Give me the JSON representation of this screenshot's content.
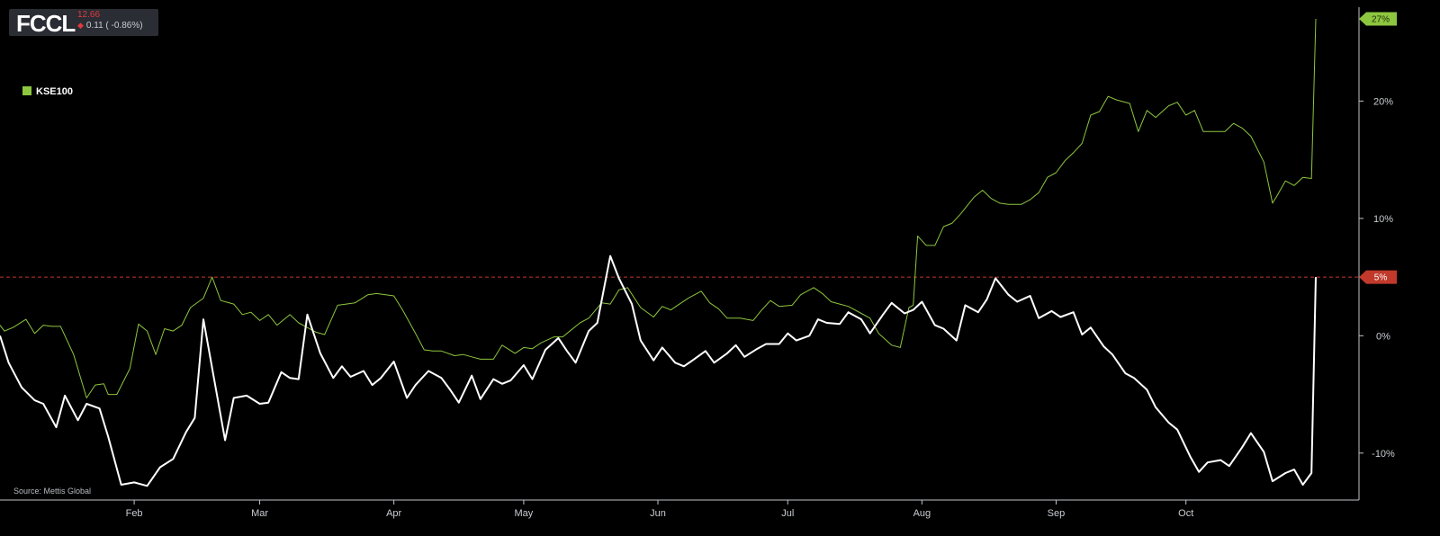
{
  "ticker": {
    "symbol": "FCCL",
    "price": "12.66",
    "change": "0.11 ( -0.86%)",
    "price_color": "#e0393e"
  },
  "legend": {
    "label": "KSE100",
    "color": "#8dc63f"
  },
  "source": "Source: Mettis Global",
  "chart_data": {
    "type": "line",
    "x_axis": {
      "type": "date",
      "range": [
        "2024-01-01",
        "2024-10-31"
      ],
      "tick_labels": [
        {
          "date": "2024-02-01",
          "label": "Feb"
        },
        {
          "date": "2024-03-01",
          "label": "Mar"
        },
        {
          "date": "2024-04-01",
          "label": "Apr"
        },
        {
          "date": "2024-05-01",
          "label": "May"
        },
        {
          "date": "2024-06-01",
          "label": "Jun"
        },
        {
          "date": "2024-07-01",
          "label": "Jul"
        },
        {
          "date": "2024-08-01",
          "label": "Aug"
        },
        {
          "date": "2024-09-01",
          "label": "Sep"
        },
        {
          "date": "2024-10-01",
          "label": "Oct"
        }
      ]
    },
    "y_axis": {
      "unit": "%",
      "position": "right",
      "range": [
        -14,
        28
      ],
      "ticks": [
        {
          "value": 20,
          "label": "20%"
        },
        {
          "value": 10,
          "label": "10%"
        },
        {
          "value": 0,
          "label": "0%"
        },
        {
          "value": -10,
          "label": "-10%"
        }
      ]
    },
    "grid": false,
    "legend_position": "top-left",
    "reference_line": {
      "value": 5,
      "label": "5%",
      "color": "#c0392b",
      "style": "dashed"
    },
    "end_badges": [
      {
        "series": "KSE100",
        "label": "27%",
        "color": "#8dc63f"
      },
      {
        "series": "FCCL",
        "label": "5%",
        "color": "#c0392b"
      }
    ],
    "series": [
      {
        "name": "KSE100",
        "color": "#8dc63f",
        "points": [
          [
            "2024-01-01",
            0.9
          ],
          [
            "2024-01-02",
            0.4
          ],
          [
            "2024-01-04",
            0.7
          ],
          [
            "2024-01-07",
            1.4
          ],
          [
            "2024-01-09",
            0.2
          ],
          [
            "2024-01-11",
            0.9
          ],
          [
            "2024-01-13",
            0.8
          ],
          [
            "2024-01-15",
            0.8
          ],
          [
            "2024-01-18",
            -1.6
          ],
          [
            "2024-01-21",
            -5.3
          ],
          [
            "2024-01-23",
            -4.2
          ],
          [
            "2024-01-25",
            -4.1
          ],
          [
            "2024-01-26",
            -5.0
          ],
          [
            "2024-01-28",
            -5.0
          ],
          [
            "2024-01-31",
            -2.8
          ],
          [
            "2024-02-02",
            1.0
          ],
          [
            "2024-02-04",
            0.4
          ],
          [
            "2024-02-06",
            -1.6
          ],
          [
            "2024-02-08",
            0.6
          ],
          [
            "2024-02-10",
            0.4
          ],
          [
            "2024-02-12",
            0.9
          ],
          [
            "2024-02-14",
            2.4
          ],
          [
            "2024-02-17",
            3.2
          ],
          [
            "2024-02-19",
            5.0
          ],
          [
            "2024-02-21",
            3.0
          ],
          [
            "2024-02-24",
            2.7
          ],
          [
            "2024-02-26",
            1.8
          ],
          [
            "2024-02-28",
            2.0
          ],
          [
            "2024-03-01",
            1.3
          ],
          [
            "2024-03-03",
            1.8
          ],
          [
            "2024-03-05",
            0.9
          ],
          [
            "2024-03-08",
            1.8
          ],
          [
            "2024-03-10",
            1.1
          ],
          [
            "2024-03-12",
            0.7
          ],
          [
            "2024-03-14",
            0.3
          ],
          [
            "2024-03-16",
            0.1
          ],
          [
            "2024-03-19",
            2.6
          ],
          [
            "2024-03-21",
            2.7
          ],
          [
            "2024-03-23",
            2.8
          ],
          [
            "2024-03-26",
            3.5
          ],
          [
            "2024-03-28",
            3.6
          ],
          [
            "2024-04-01",
            3.4
          ],
          [
            "2024-04-03",
            2.2
          ],
          [
            "2024-04-06",
            0.2
          ],
          [
            "2024-04-08",
            -1.2
          ],
          [
            "2024-04-10",
            -1.3
          ],
          [
            "2024-04-12",
            -1.3
          ],
          [
            "2024-04-15",
            -1.7
          ],
          [
            "2024-04-17",
            -1.6
          ],
          [
            "2024-04-19",
            -1.8
          ],
          [
            "2024-04-21",
            -2.0
          ],
          [
            "2024-04-24",
            -2.0
          ],
          [
            "2024-04-26",
            -0.8
          ],
          [
            "2024-04-29",
            -1.5
          ],
          [
            "2024-05-01",
            -1.0
          ],
          [
            "2024-05-03",
            -1.1
          ],
          [
            "2024-05-05",
            -0.6
          ],
          [
            "2024-05-08",
            -0.1
          ],
          [
            "2024-05-10",
            -0.1
          ],
          [
            "2024-05-12",
            0.5
          ],
          [
            "2024-05-14",
            1.1
          ],
          [
            "2024-05-16",
            1.5
          ],
          [
            "2024-05-19",
            2.8
          ],
          [
            "2024-05-21",
            2.7
          ],
          [
            "2024-05-23",
            3.9
          ],
          [
            "2024-05-25",
            4.1
          ],
          [
            "2024-05-28",
            2.4
          ],
          [
            "2024-05-31",
            1.6
          ],
          [
            "2024-06-02",
            2.5
          ],
          [
            "2024-06-04",
            2.2
          ],
          [
            "2024-06-06",
            2.7
          ],
          [
            "2024-06-08",
            3.2
          ],
          [
            "2024-06-11",
            3.8
          ],
          [
            "2024-06-13",
            2.8
          ],
          [
            "2024-06-15",
            2.3
          ],
          [
            "2024-06-17",
            1.5
          ],
          [
            "2024-06-20",
            1.5
          ],
          [
            "2024-06-23",
            1.3
          ],
          [
            "2024-06-25",
            2.2
          ],
          [
            "2024-06-27",
            3.0
          ],
          [
            "2024-06-29",
            2.5
          ],
          [
            "2024-07-02",
            2.6
          ],
          [
            "2024-07-04",
            3.5
          ],
          [
            "2024-07-07",
            4.1
          ],
          [
            "2024-07-09",
            3.6
          ],
          [
            "2024-07-11",
            2.9
          ],
          [
            "2024-07-13",
            2.7
          ],
          [
            "2024-07-15",
            2.5
          ],
          [
            "2024-07-18",
            1.9
          ],
          [
            "2024-07-20",
            1.5
          ],
          [
            "2024-07-22",
            0.2
          ],
          [
            "2024-07-25",
            -0.8
          ],
          [
            "2024-07-27",
            -1.0
          ],
          [
            "2024-07-29",
            2.4
          ],
          [
            "2024-07-30",
            2.6
          ],
          [
            "2024-07-31",
            8.5
          ],
          [
            "2024-08-02",
            7.7
          ],
          [
            "2024-08-04",
            7.7
          ],
          [
            "2024-08-06",
            9.3
          ],
          [
            "2024-08-08",
            9.6
          ],
          [
            "2024-08-10",
            10.4
          ],
          [
            "2024-08-13",
            11.8
          ],
          [
            "2024-08-15",
            12.4
          ],
          [
            "2024-08-17",
            11.7
          ],
          [
            "2024-08-19",
            11.3
          ],
          [
            "2024-08-21",
            11.2
          ],
          [
            "2024-08-24",
            11.2
          ],
          [
            "2024-08-26",
            11.6
          ],
          [
            "2024-08-28",
            12.2
          ],
          [
            "2024-08-30",
            13.5
          ],
          [
            "2024-09-01",
            13.9
          ],
          [
            "2024-09-03",
            14.9
          ],
          [
            "2024-09-05",
            15.6
          ],
          [
            "2024-09-07",
            16.4
          ],
          [
            "2024-09-09",
            18.8
          ],
          [
            "2024-09-11",
            19.1
          ],
          [
            "2024-09-13",
            20.4
          ],
          [
            "2024-09-15",
            20.1
          ],
          [
            "2024-09-18",
            19.8
          ],
          [
            "2024-09-20",
            17.4
          ],
          [
            "2024-09-22",
            19.2
          ],
          [
            "2024-09-24",
            18.6
          ],
          [
            "2024-09-27",
            19.6
          ],
          [
            "2024-09-29",
            19.9
          ],
          [
            "2024-10-01",
            18.8
          ],
          [
            "2024-10-03",
            19.2
          ],
          [
            "2024-10-05",
            17.4
          ],
          [
            "2024-10-08",
            17.4
          ],
          [
            "2024-10-10",
            17.4
          ],
          [
            "2024-10-12",
            18.1
          ],
          [
            "2024-10-14",
            17.7
          ],
          [
            "2024-10-16",
            17.0
          ],
          [
            "2024-10-19",
            14.8
          ],
          [
            "2024-10-21",
            11.3
          ],
          [
            "2024-10-22",
            11.9
          ],
          [
            "2024-10-24",
            13.2
          ],
          [
            "2024-10-26",
            12.8
          ],
          [
            "2024-10-28",
            13.5
          ],
          [
            "2024-10-30",
            13.4
          ],
          [
            "2024-10-31",
            27.0
          ]
        ]
      },
      {
        "name": "FCCL",
        "color": "#ffffff",
        "points": [
          [
            "2024-01-01",
            0.0
          ],
          [
            "2024-01-03",
            -2.3
          ],
          [
            "2024-01-06",
            -4.4
          ],
          [
            "2024-01-09",
            -5.5
          ],
          [
            "2024-01-11",
            -5.8
          ],
          [
            "2024-01-14",
            -7.8
          ],
          [
            "2024-01-16",
            -5.1
          ],
          [
            "2024-01-19",
            -7.2
          ],
          [
            "2024-01-21",
            -5.8
          ],
          [
            "2024-01-24",
            -6.2
          ],
          [
            "2024-01-26",
            -8.6
          ],
          [
            "2024-01-29",
            -12.7
          ],
          [
            "2024-02-01",
            -12.5
          ],
          [
            "2024-02-04",
            -12.8
          ],
          [
            "2024-02-07",
            -11.2
          ],
          [
            "2024-02-10",
            -10.5
          ],
          [
            "2024-02-13",
            -8.2
          ],
          [
            "2024-02-15",
            -7.0
          ],
          [
            "2024-02-17",
            1.4
          ],
          [
            "2024-02-22",
            -8.9
          ],
          [
            "2024-02-24",
            -5.3
          ],
          [
            "2024-02-27",
            -5.1
          ],
          [
            "2024-03-01",
            -5.8
          ],
          [
            "2024-03-03",
            -5.7
          ],
          [
            "2024-03-06",
            -3.1
          ],
          [
            "2024-03-08",
            -3.6
          ],
          [
            "2024-03-10",
            -3.7
          ],
          [
            "2024-03-12",
            1.8
          ],
          [
            "2024-03-15",
            -1.5
          ],
          [
            "2024-03-18",
            -3.6
          ],
          [
            "2024-03-20",
            -2.6
          ],
          [
            "2024-03-22",
            -3.5
          ],
          [
            "2024-03-25",
            -3.0
          ],
          [
            "2024-03-27",
            -4.2
          ],
          [
            "2024-03-29",
            -3.6
          ],
          [
            "2024-04-01",
            -2.2
          ],
          [
            "2024-04-04",
            -5.3
          ],
          [
            "2024-04-06",
            -4.2
          ],
          [
            "2024-04-09",
            -3.0
          ],
          [
            "2024-04-12",
            -3.6
          ],
          [
            "2024-04-14",
            -4.6
          ],
          [
            "2024-04-16",
            -5.7
          ],
          [
            "2024-04-19",
            -3.4
          ],
          [
            "2024-04-21",
            -5.4
          ],
          [
            "2024-04-24",
            -3.7
          ],
          [
            "2024-04-26",
            -4.1
          ],
          [
            "2024-04-28",
            -3.8
          ],
          [
            "2024-05-01",
            -2.5
          ],
          [
            "2024-05-03",
            -3.7
          ],
          [
            "2024-05-06",
            -1.2
          ],
          [
            "2024-05-09",
            -0.2
          ],
          [
            "2024-05-11",
            -1.3
          ],
          [
            "2024-05-13",
            -2.3
          ],
          [
            "2024-05-16",
            0.4
          ],
          [
            "2024-05-18",
            1.1
          ],
          [
            "2024-05-21",
            6.8
          ],
          [
            "2024-05-23",
            4.9
          ],
          [
            "2024-05-26",
            2.7
          ],
          [
            "2024-05-28",
            -0.4
          ],
          [
            "2024-05-31",
            -2.1
          ],
          [
            "2024-06-02",
            -1.0
          ],
          [
            "2024-06-05",
            -2.3
          ],
          [
            "2024-06-07",
            -2.6
          ],
          [
            "2024-06-09",
            -2.1
          ],
          [
            "2024-06-12",
            -1.3
          ],
          [
            "2024-06-14",
            -2.3
          ],
          [
            "2024-06-17",
            -1.5
          ],
          [
            "2024-06-19",
            -0.8
          ],
          [
            "2024-06-21",
            -1.8
          ],
          [
            "2024-06-24",
            -1.1
          ],
          [
            "2024-06-26",
            -0.7
          ],
          [
            "2024-06-29",
            -0.7
          ],
          [
            "2024-07-01",
            0.2
          ],
          [
            "2024-07-03",
            -0.4
          ],
          [
            "2024-07-06",
            0.0
          ],
          [
            "2024-07-08",
            1.4
          ],
          [
            "2024-07-10",
            1.1
          ],
          [
            "2024-07-13",
            1.0
          ],
          [
            "2024-07-15",
            2.0
          ],
          [
            "2024-07-18",
            1.4
          ],
          [
            "2024-07-20",
            0.2
          ],
          [
            "2024-07-23",
            1.8
          ],
          [
            "2024-07-25",
            2.8
          ],
          [
            "2024-07-28",
            1.9
          ],
          [
            "2024-07-30",
            2.2
          ],
          [
            "2024-08-01",
            2.9
          ],
          [
            "2024-08-04",
            0.9
          ],
          [
            "2024-08-06",
            0.6
          ],
          [
            "2024-08-09",
            -0.4
          ],
          [
            "2024-08-11",
            2.6
          ],
          [
            "2024-08-14",
            2.0
          ],
          [
            "2024-08-16",
            3.1
          ],
          [
            "2024-08-18",
            4.9
          ],
          [
            "2024-08-21",
            3.5
          ],
          [
            "2024-08-23",
            2.9
          ],
          [
            "2024-08-26",
            3.4
          ],
          [
            "2024-08-28",
            1.5
          ],
          [
            "2024-08-31",
            2.1
          ],
          [
            "2024-09-02",
            1.6
          ],
          [
            "2024-09-05",
            2.0
          ],
          [
            "2024-09-07",
            0.1
          ],
          [
            "2024-09-09",
            0.7
          ],
          [
            "2024-09-12",
            -0.9
          ],
          [
            "2024-09-14",
            -1.6
          ],
          [
            "2024-09-17",
            -3.2
          ],
          [
            "2024-09-19",
            -3.6
          ],
          [
            "2024-09-22",
            -4.6
          ],
          [
            "2024-09-24",
            -6.1
          ],
          [
            "2024-09-27",
            -7.4
          ],
          [
            "2024-09-29",
            -8.0
          ],
          [
            "2024-10-02",
            -10.3
          ],
          [
            "2024-10-04",
            -11.6
          ],
          [
            "2024-10-06",
            -10.8
          ],
          [
            "2024-10-09",
            -10.6
          ],
          [
            "2024-10-11",
            -11.1
          ],
          [
            "2024-10-14",
            -9.5
          ],
          [
            "2024-10-16",
            -8.3
          ],
          [
            "2024-10-19",
            -9.9
          ],
          [
            "2024-10-21",
            -12.4
          ],
          [
            "2024-10-24",
            -11.7
          ],
          [
            "2024-10-26",
            -11.4
          ],
          [
            "2024-10-28",
            -12.7
          ],
          [
            "2024-10-30",
            -11.7
          ],
          [
            "2024-10-31",
            5.0
          ]
        ]
      }
    ]
  }
}
